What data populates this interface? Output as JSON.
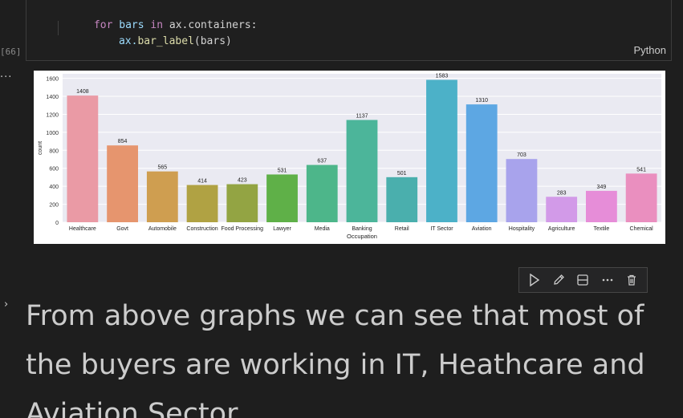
{
  "code": {
    "line1": {
      "kw": "for",
      "var1": "bars",
      "kw2": "in",
      "rest": "ax.containers:"
    },
    "line2": {
      "obj": "ax.",
      "fn": "bar_label",
      "args": "(bars)"
    },
    "language": "Python",
    "exec_count": "[66]"
  },
  "output": {
    "dots": "···"
  },
  "chart_data": {
    "type": "bar",
    "categories": [
      "Healthcare",
      "Govt",
      "Automobile",
      "Construction",
      "Food Processing",
      "Lawyer",
      "Media",
      "Banking",
      "Retail",
      "IT Sector",
      "Aviation",
      "Hospitality",
      "Agriculture",
      "Textile",
      "Chemical"
    ],
    "values": [
      1408,
      854,
      565,
      414,
      423,
      531,
      637,
      1137,
      501,
      1583,
      1310,
      703,
      283,
      349,
      541
    ],
    "colors": [
      "#ea9aa5",
      "#e6956e",
      "#cf9e50",
      "#b0a243",
      "#93a443",
      "#5fb048",
      "#4db68a",
      "#4cb59a",
      "#4aafad",
      "#4cb1c8",
      "#5da7e3",
      "#a8a3ec",
      "#d29ae8",
      "#e68dd8",
      "#ea8fbf"
    ],
    "title": "",
    "xlabel": "Occupation",
    "ylabel": "count",
    "yticks": [
      0,
      200,
      400,
      600,
      800,
      1000,
      1200,
      1400,
      1600
    ],
    "ylim": [
      0,
      1650
    ],
    "grid": true,
    "background": "#eaeaf2"
  },
  "toolbar": {
    "run_icon": "play-icon",
    "edit_icon": "pencil-icon",
    "split_icon": "split-cell-icon",
    "more_icon": "more-icon",
    "delete_icon": "trash-icon"
  },
  "markdown": {
    "text": "From above graphs we can see that most of the buyers are working in IT, Heathcare and Aviation Sector"
  }
}
